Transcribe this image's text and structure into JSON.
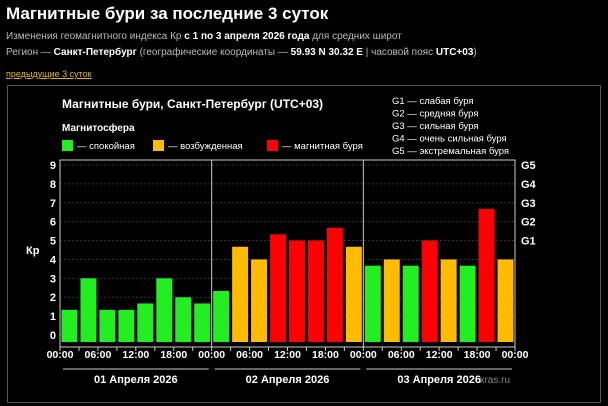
{
  "header": {
    "title": "Магнитные бури за последние 3 суток",
    "line1_pre": "Изменения геомагнитного индекса Кр ",
    "line1_bold": "с 1 по 3 апреля 2026 года",
    "line1_post": " для средних широт",
    "line2_pre": "Регион — ",
    "line2_city": "Санкт-Петербург",
    "line2_mid": " (географические координаты — ",
    "line2_coords": "59.93 N 30.32 E",
    "line2_mid2": " | часовой пояс ",
    "line2_tz": "UTC+03",
    "line2_end": ")",
    "prev_link": "предыдущие 3 суток"
  },
  "colors": {
    "calm": "#22ee22",
    "excited": "#ffbb00",
    "storm": "#ff0000"
  },
  "chart_data": {
    "type": "bar",
    "title": "Магнитные бури, Санкт-Петербург (UTC+03)",
    "ylabel": "Кр",
    "ylim": [
      0,
      9
    ],
    "legend_title": "Магнитосфера",
    "legend": [
      {
        "label": "— спокойная",
        "color": "#22ee22"
      },
      {
        "label": "— возбужденная",
        "color": "#ffbb00"
      },
      {
        "label": "— магнитная буря",
        "color": "#ff0000"
      }
    ],
    "g_legend": [
      "G1 — слабая буря",
      "G2 — средняя буря",
      "G3 — сильная буря",
      "G4 — очень сильная буря",
      "G5 — экстремальная буря"
    ],
    "g_levels": [
      {
        "label": "G1",
        "kp": 5
      },
      {
        "label": "G2",
        "kp": 6
      },
      {
        "label": "G3",
        "kp": 7
      },
      {
        "label": "G4",
        "kp": 8
      },
      {
        "label": "G5",
        "kp": 9
      }
    ],
    "yticks": [
      "0",
      "1",
      "2",
      "3",
      "4",
      "5",
      "6",
      "7",
      "8",
      "9"
    ],
    "xticks": [
      "00:00",
      "06:00",
      "12:00",
      "18:00",
      "00:00",
      "06:00",
      "12:00",
      "18:00",
      "00:00",
      "06:00",
      "12:00",
      "18:00",
      "00:00"
    ],
    "days": [
      "01 Апреля 2026",
      "02 Апреля 2026",
      "03 Апреля 2026"
    ],
    "values": [
      1.33,
      3,
      1.33,
      1.33,
      1.67,
      3,
      2,
      1.67,
      2.33,
      4.67,
      4,
      5.33,
      5,
      5,
      5.67,
      4.67,
      3.67,
      4,
      3.67,
      5,
      4,
      3.67,
      6.67,
      4
    ],
    "watermark": "xras.ru"
  }
}
